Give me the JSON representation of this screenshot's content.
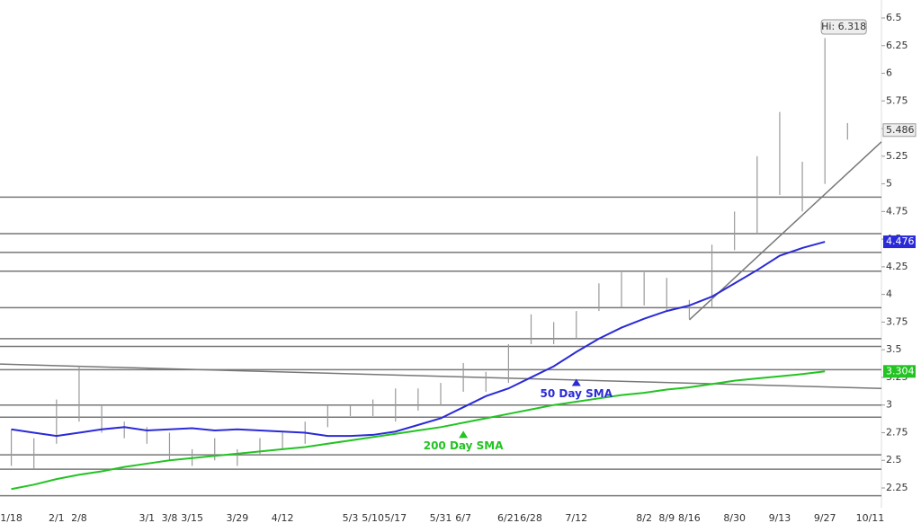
{
  "chart_data": {
    "type": "ohlc",
    "categories": [
      "1/18",
      null,
      "2/1",
      "2/8",
      null,
      null,
      "3/1",
      "3/8",
      "3/15",
      null,
      "3/29",
      null,
      "4/12",
      null,
      null,
      "5/3",
      "5/10",
      "5/17",
      null,
      "5/31",
      "6/7",
      null,
      "6/21",
      "6/28",
      null,
      "7/12",
      null,
      null,
      "8/2",
      "8/9",
      "8/16",
      null,
      "8/30",
      null,
      "9/13",
      null,
      "9/27",
      null,
      "10/11"
    ],
    "high": [
      2.78,
      2.7,
      3.05,
      3.35,
      3.0,
      2.85,
      2.8,
      2.75,
      2.6,
      2.7,
      2.6,
      2.7,
      2.75,
      2.85,
      3.0,
      3.0,
      3.05,
      3.15,
      3.15,
      3.2,
      3.38,
      3.3,
      3.55,
      3.82,
      3.75,
      3.85,
      4.1,
      4.2,
      4.2,
      4.15,
      3.95,
      4.45,
      4.75,
      5.25,
      5.65,
      5.2,
      6.318,
      5.55,
      null
    ],
    "low": [
      2.45,
      2.42,
      2.65,
      2.85,
      2.75,
      2.7,
      2.65,
      2.5,
      2.45,
      2.5,
      2.45,
      2.55,
      2.6,
      2.65,
      2.8,
      2.9,
      2.9,
      2.85,
      2.95,
      3.0,
      3.12,
      3.12,
      3.2,
      3.55,
      3.55,
      3.6,
      3.85,
      3.88,
      3.9,
      3.85,
      3.78,
      3.88,
      4.4,
      4.55,
      4.9,
      4.75,
      5.0,
      5.4,
      null
    ],
    "bar_color": "#999999",
    "series": [
      {
        "name": "50 Day SMA",
        "color": "#2a2ad8",
        "values": [
          2.78,
          2.75,
          2.72,
          2.75,
          2.78,
          2.8,
          2.77,
          2.78,
          2.79,
          2.77,
          2.78,
          2.77,
          2.76,
          2.75,
          2.72,
          2.72,
          2.73,
          2.76,
          2.82,
          2.88,
          2.98,
          3.08,
          3.15,
          3.25,
          3.35,
          3.48,
          3.6,
          3.7,
          3.78,
          3.85,
          3.9,
          3.98,
          4.1,
          4.22,
          4.35,
          4.42,
          4.476,
          null,
          null
        ],
        "last_label": "4.476"
      },
      {
        "name": "200 Day SMA",
        "color": "#22c322",
        "values": [
          2.24,
          2.28,
          2.33,
          2.37,
          2.4,
          2.44,
          2.47,
          2.5,
          2.52,
          2.54,
          2.56,
          2.58,
          2.6,
          2.62,
          2.65,
          2.68,
          2.71,
          2.74,
          2.77,
          2.8,
          2.84,
          2.88,
          2.92,
          2.96,
          3.0,
          3.03,
          3.06,
          3.09,
          3.11,
          3.14,
          3.16,
          3.19,
          3.22,
          3.24,
          3.26,
          3.28,
          3.304,
          null,
          null
        ],
        "last_label": "3.304"
      }
    ],
    "high_label": "Hi: 6.318",
    "last_price": 5.486,
    "last_price_label": "5.486",
    "levels": [
      2.18,
      2.42,
      2.55,
      2.89,
      3.0,
      3.32,
      3.53,
      3.6,
      3.88,
      4.21,
      4.38,
      4.55,
      4.88
    ],
    "trendlines": [
      [
        3.37,
        3.15
      ],
      [
        3.77,
        5.38
      ]
    ],
    "ylim": [
      2.25,
      6.5
    ],
    "yticks": [
      2.25,
      2.5,
      2.75,
      3,
      3.25,
      3.5,
      3.75,
      4,
      4.25,
      4.5,
      4.75,
      5,
      5.25,
      5.5,
      5.75,
      6,
      6.25,
      6.5
    ]
  }
}
